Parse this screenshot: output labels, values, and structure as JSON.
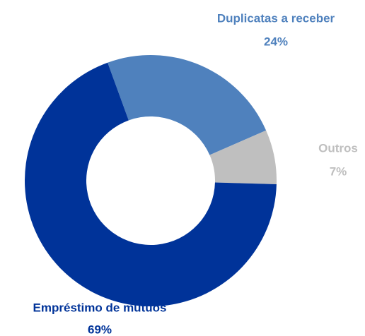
{
  "chart_data": {
    "type": "donut",
    "categories": [
      "Duplicatas a receber",
      "Outros",
      "Empréstimo de mutuos"
    ],
    "values": [
      24,
      7,
      69
    ],
    "value_labels": [
      "24%",
      "7%",
      "69%"
    ],
    "colors": [
      "#4f81bd",
      "#bfbfbf",
      "#003399"
    ]
  }
}
